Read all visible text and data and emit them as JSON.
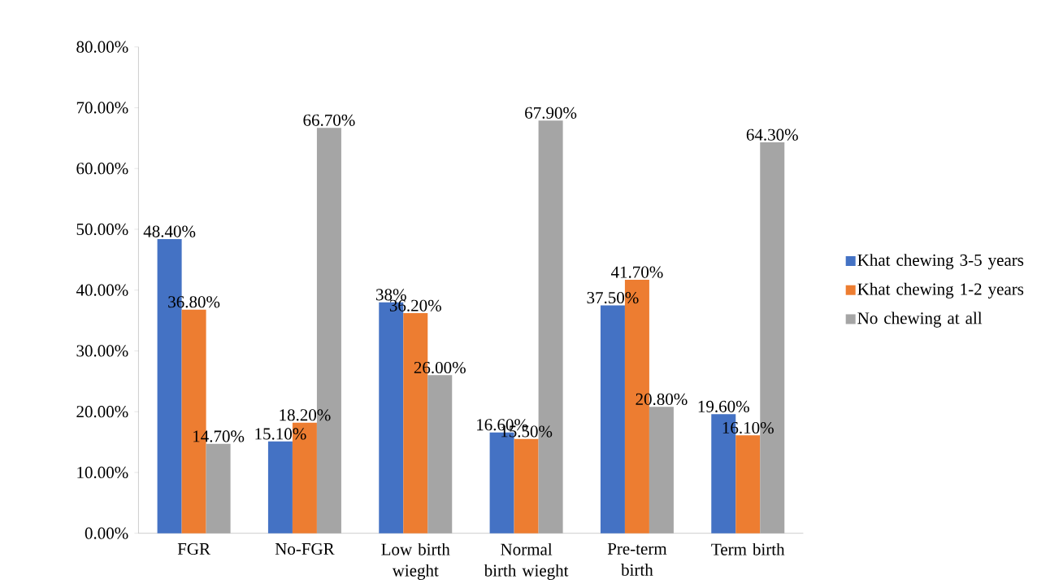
{
  "chart_data": {
    "type": "bar",
    "categories": [
      "FGR",
      "No-FGR",
      "Low birth wieght",
      "Normal birth wieght",
      "Pre-term birth",
      "Term birth"
    ],
    "series": [
      {
        "name": "Khat chewing 3-5 years",
        "color": "#4472c4",
        "values": [
          48.4,
          15.1,
          38,
          16.6,
          37.5,
          19.6
        ],
        "value_labels": [
          "48.40%",
          "15.10%",
          "38%",
          "16.60%",
          "37.50%",
          "19.60%"
        ]
      },
      {
        "name": "Khat chewing 1-2 years",
        "color": "#ed7d31",
        "values": [
          36.8,
          18.2,
          36.2,
          15.5,
          41.7,
          16.1
        ],
        "value_labels": [
          "36.80%",
          "18.20%",
          "36.20%",
          "15.50%",
          "41.70%",
          "16.10%"
        ]
      },
      {
        "name": "No chewing at all",
        "color": "#a5a5a5",
        "values": [
          14.7,
          66.7,
          26.0,
          67.9,
          20.8,
          64.3
        ],
        "value_labels": [
          "14.70%",
          "66.70%",
          "26.00%",
          "67.90%",
          "20.80%",
          "64.30%"
        ]
      }
    ],
    "ylim": [
      0,
      80
    ],
    "yticks": [
      {
        "value": 0,
        "label": "0.00%"
      },
      {
        "value": 10,
        "label": "10.00%"
      },
      {
        "value": 20,
        "label": "20.00%"
      },
      {
        "value": 30,
        "label": "30.00%"
      },
      {
        "value": 40,
        "label": "40.00%"
      },
      {
        "value": 50,
        "label": "50.00%"
      },
      {
        "value": 60,
        "label": "60.00%"
      },
      {
        "value": 70,
        "label": "70.00%"
      },
      {
        "value": 80,
        "label": "80.00%"
      }
    ],
    "legend": "right"
  }
}
